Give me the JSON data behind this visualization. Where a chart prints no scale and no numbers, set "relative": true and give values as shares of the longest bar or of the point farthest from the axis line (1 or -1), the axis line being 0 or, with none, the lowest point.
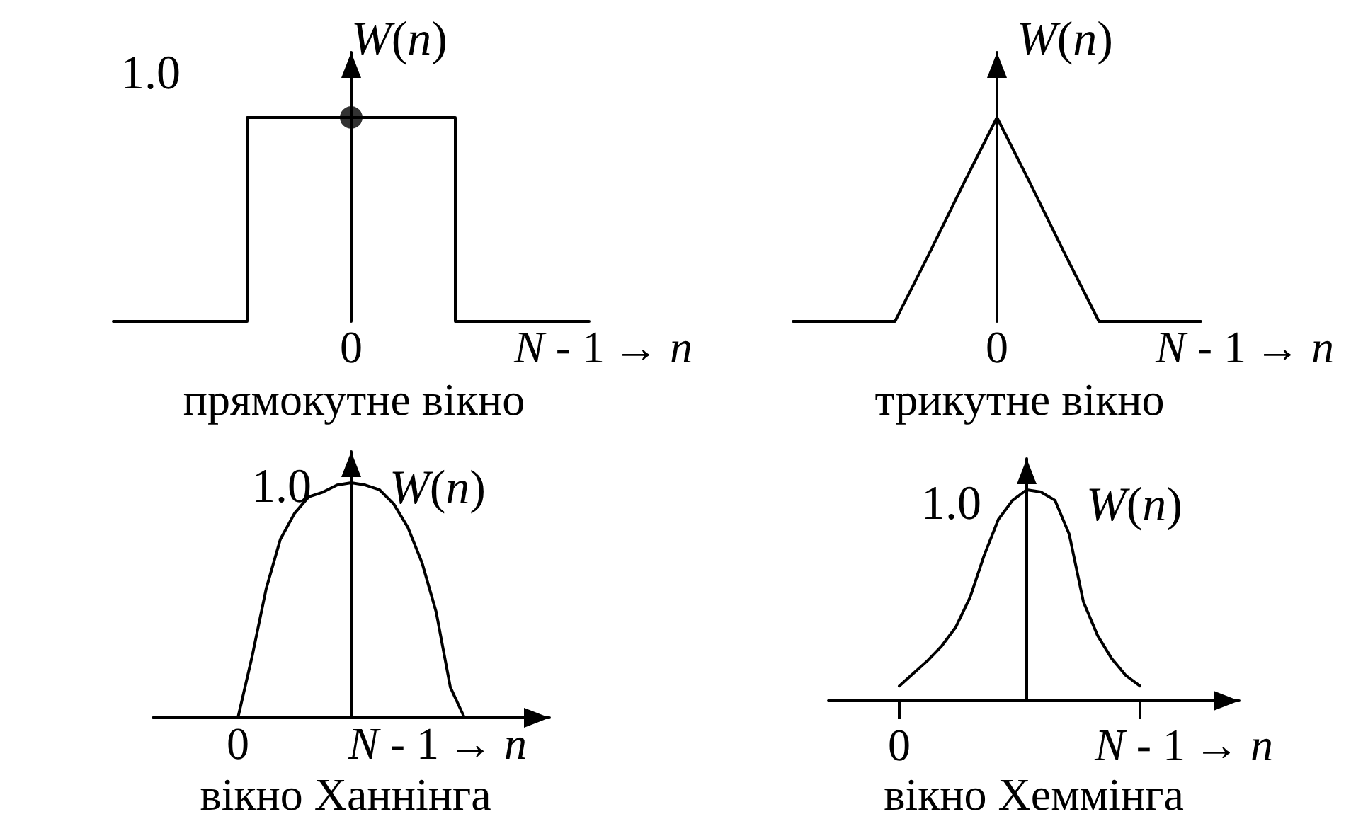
{
  "chart_data": [
    {
      "type": "step",
      "title": "прямокутне вікно",
      "xlabel": "→ n",
      "ylabel": "W(n)",
      "relative": true,
      "marker": "none",
      "tick_labels": "x",
      "categories": [
        null,
        null,
        null,
        null,
        null,
        null,
        null,
        null,
        "0",
        null,
        null,
        null,
        null,
        null,
        null,
        "N - 1",
        null
      ],
      "series": [
        {
          "color": "#000000",
          "values": [
            0,
            0,
            0,
            0,
            0,
            1,
            1,
            1,
            1,
            1,
            1,
            1,
            0,
            0,
            0,
            0,
            0
          ]
        },
        {
          "type": "scatter",
          "marker": "circle",
          "color": "#000000",
          "x": [
            "0"
          ],
          "values": [
            1
          ]
        }
      ],
      "annotations": [
        "1.0"
      ]
    },
    {
      "type": "line",
      "title": "трикутне вікно",
      "xlabel": "→ n",
      "ylabel": "W(n)",
      "relative": true,
      "marker": "none",
      "tick_labels": "x",
      "categories": [
        null,
        null,
        null,
        null,
        null,
        null,
        "0",
        null,
        null,
        null,
        null,
        null,
        "N - 1"
      ],
      "series": [
        {
          "color": "#000000",
          "values": [
            0,
            0,
            0,
            0,
            0.33,
            0.67,
            1,
            0.67,
            0.33,
            0,
            0,
            0,
            0
          ]
        }
      ]
    },
    {
      "type": "line",
      "title": "вікно Ханнінга",
      "xlabel": "→ n",
      "ylabel": "W(n)",
      "relative": true,
      "marker": "none",
      "tick_labels": "x",
      "categories": [
        null,
        null,
        null,
        null,
        null,
        null,
        "0",
        null,
        null,
        null,
        null,
        null,
        null,
        null,
        null,
        null,
        null,
        "N - 1",
        null,
        null,
        null,
        null,
        null,
        null,
        null,
        null,
        null,
        null,
        null
      ],
      "series": [
        {
          "color": "#000000",
          "values": [
            null,
            null,
            null,
            null,
            null,
            null,
            0,
            0.26,
            0.55,
            0.76,
            0.87,
            0.94,
            0.96,
            0.99,
            1,
            0.99,
            0.97,
            0.91,
            0.81,
            0.66,
            0.45,
            0.13,
            0,
            null,
            null,
            null,
            null,
            null,
            null
          ]
        }
      ],
      "annotations": [
        "1.0"
      ]
    },
    {
      "type": "line",
      "title": "вікно Хеммінга",
      "xlabel": "→ n",
      "ylabel": "W(n)",
      "relative": true,
      "marker": "none",
      "tick_labels": "x",
      "categories": [
        null,
        null,
        null,
        null,
        null,
        "0",
        null,
        null,
        null,
        null,
        null,
        null,
        null,
        null,
        null,
        null,
        null,
        null,
        null,
        null,
        null,
        null,
        "N - 1",
        null,
        null,
        null,
        null,
        null,
        null,
        null
      ],
      "series": [
        {
          "color": "#000000",
          "values": [
            null,
            null,
            null,
            null,
            null,
            0.07,
            0.13,
            0.19,
            0.26,
            0.35,
            0.49,
            0.69,
            0.86,
            0.95,
            1,
            0.99,
            0.95,
            0.79,
            0.47,
            0.31,
            0.2,
            0.12,
            0.07,
            null,
            null,
            null,
            null,
            null,
            null,
            null
          ]
        }
      ],
      "annotations": [
        "1.0"
      ]
    }
  ]
}
